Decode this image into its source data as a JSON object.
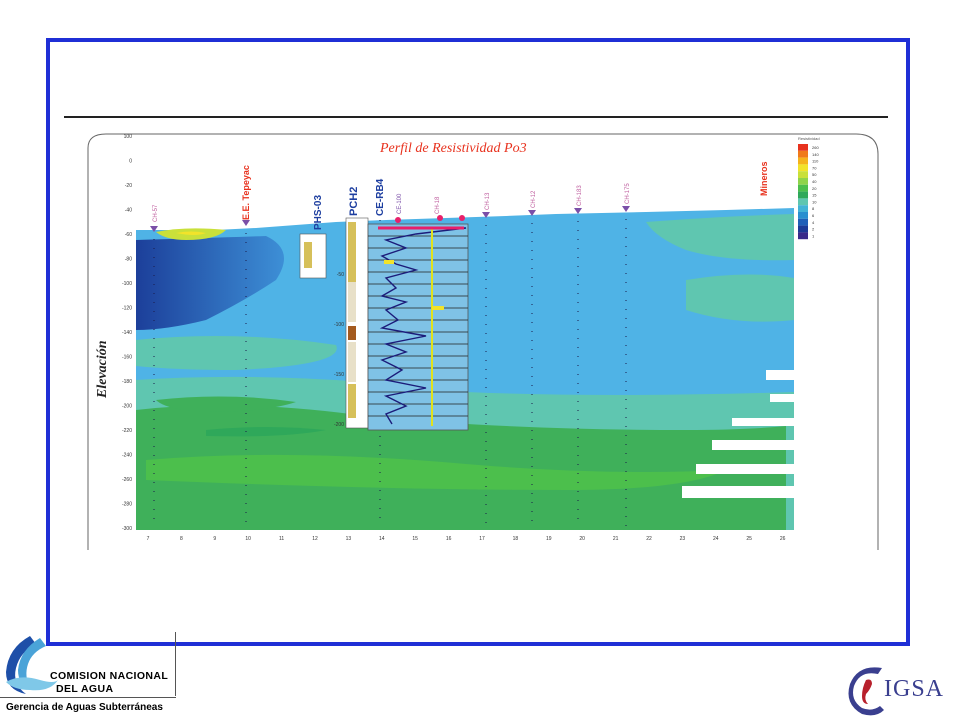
{
  "figure": {
    "title": "Perfil  de Resistividad Po3",
    "y_axis_label": "Elevación",
    "y_ticks": [
      "100",
      "0",
      "-20",
      "-40",
      "-60",
      "-80",
      "-100",
      "-120",
      "-140",
      "-160",
      "-180",
      "-200",
      "-220",
      "-240",
      "-260",
      "-280",
      "-300"
    ],
    "x_ticks": [
      "7",
      "8",
      "9",
      "10",
      "11",
      "12",
      "13",
      "14",
      "15",
      "16",
      "17",
      "18",
      "19",
      "20",
      "21",
      "22",
      "23",
      "24",
      "25",
      "26"
    ],
    "well_labels": [
      "CH-57",
      "E.E. Tepeyac",
      "PHS-03",
      "PCH2",
      "CE-RB4",
      "CE-100",
      "CH-18",
      "CH-13",
      "CH-12",
      "CH-183",
      "CH-175",
      "Mineros"
    ],
    "log_depth_ticks": [
      "-50",
      "-100",
      "-150",
      "-200"
    ],
    "legend_values": [
      "260",
      "140",
      "110",
      "70",
      "50",
      "40",
      "20",
      "15",
      "10",
      "8",
      "6",
      "4",
      "2",
      "1"
    ],
    "legend_colors": [
      "#e8321e",
      "#f07a1a",
      "#f5b31c",
      "#f2e32a",
      "#c9e03a",
      "#8fd44a",
      "#4cbf4c",
      "#2fa85a",
      "#5fc6b0",
      "#43b3d6",
      "#2a8fd0",
      "#1f5fb8",
      "#1c3a96",
      "#3a2a8a"
    ],
    "legend_title": "Resistividad"
  },
  "footer": {
    "agency_line1": "COMISION NACIONAL",
    "agency_line2": "DEL  AGUA",
    "agency_sub": "Gerencia de Aguas Subterráneas",
    "igsa": "IGSA"
  },
  "colors": {
    "frame": "#1f2fd6",
    "deep_blue": "#1f4fa8",
    "sky_blue": "#4fb3e6",
    "teal": "#5fc6b0",
    "green": "#3fb05a",
    "title_red": "#e8321e"
  }
}
